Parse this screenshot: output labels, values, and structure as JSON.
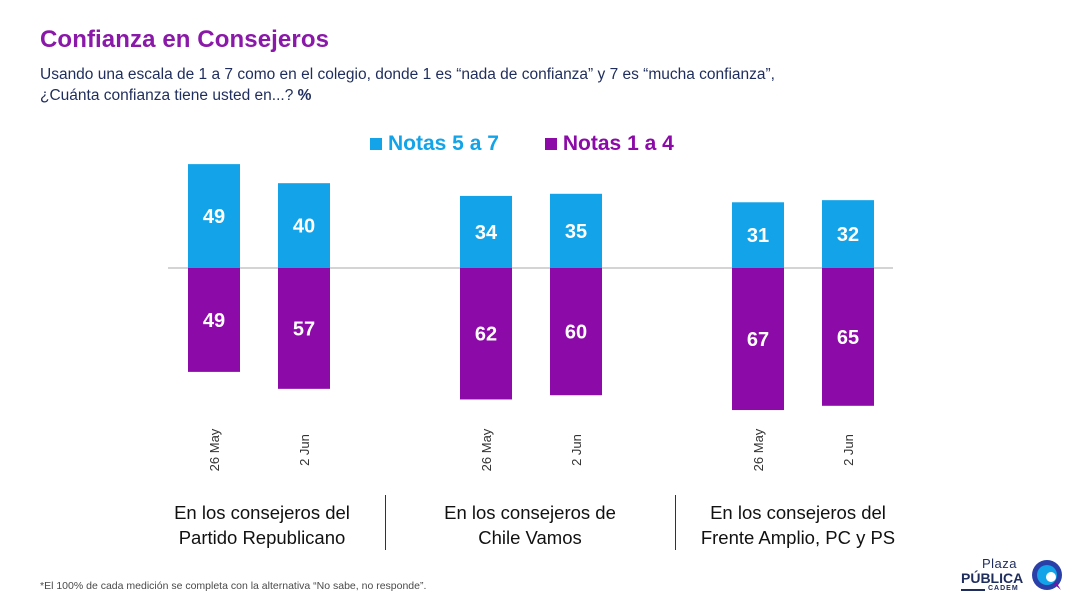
{
  "title": "Confianza en Consejeros",
  "subtitle": {
    "line1": "Usando una escala de 1 a 7 como en el colegio, donde 1 es “nada de confianza” y 7 es “mucha confianza”,",
    "line2": "¿Cuánta confianza tiene usted en...?",
    "unit": "%"
  },
  "legend": [
    {
      "label": "Notas 5 a 7",
      "color": "#12a3e8"
    },
    {
      "label": "Notas 1 a 4",
      "color": "#8b0aa8"
    }
  ],
  "chart_data": {
    "type": "bar",
    "layout": "diverging",
    "groups": [
      {
        "label_lines": [
          "En los consejeros del",
          "Partido Republicano"
        ],
        "categories": [
          "26 May",
          "2 Jun"
        ],
        "positive": [
          49,
          40
        ],
        "negative": [
          49,
          57
        ]
      },
      {
        "label_lines": [
          "En los consejeros de",
          "Chile Vamos"
        ],
        "categories": [
          "26 May",
          "2 Jun"
        ],
        "positive": [
          34,
          35
        ],
        "negative": [
          62,
          60
        ]
      },
      {
        "label_lines": [
          "En los consejeros del",
          "Frente Amplio, PC y PS"
        ],
        "categories": [
          "26 May",
          "2 Jun"
        ],
        "positive": [
          31,
          32
        ],
        "negative": [
          67,
          65
        ]
      }
    ],
    "series": [
      {
        "name": "Notas 5 a 7",
        "color": "#12a3e8"
      },
      {
        "name": "Notas 1 a 4",
        "color": "#8b0aa8"
      }
    ]
  },
  "footnote": "*El 100% de cada medición se completa con la alternativa “No sabe, no responde”.",
  "logo": {
    "line1": "Plaza",
    "line2": "PÚBLICA",
    "line3": "CADEM"
  }
}
